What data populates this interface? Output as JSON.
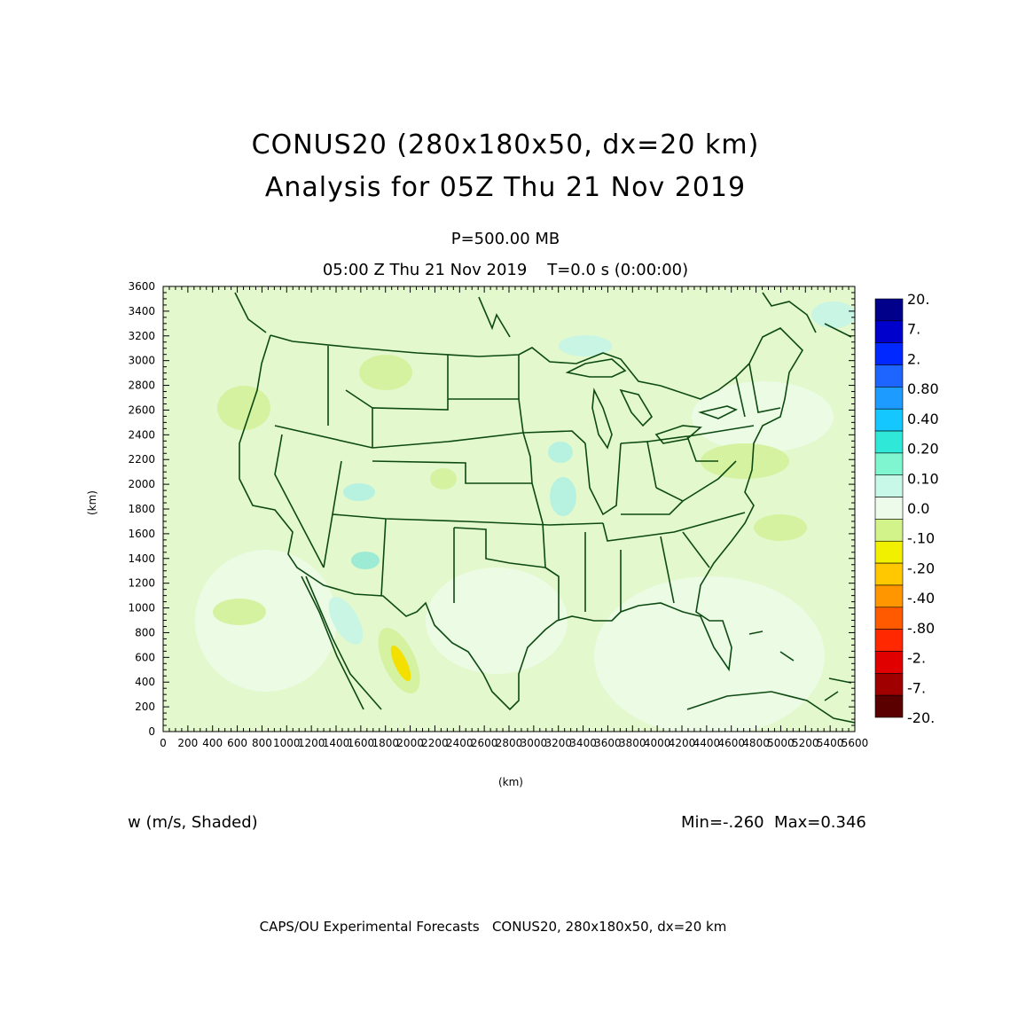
{
  "title_line1": "CONUS20 (280x180x50, dx=20 km)",
  "title_line2": "Analysis for 05Z Thu 21 Nov 2019",
  "level": "P=500.00 MB",
  "valid_time": "05:00 Z Thu 21 Nov 2019    T=0.0 s (0:00:00)",
  "axes": {
    "xlabel": "(km)",
    "ylabel": "(km)",
    "x_ticks": [
      "0",
      "200",
      "400",
      "600",
      "800",
      "1000",
      "1200",
      "1400",
      "1600",
      "1800",
      "2000",
      "2200",
      "2400",
      "2600",
      "2800",
      "3000",
      "3200",
      "3400",
      "3600",
      "3800",
      "4000",
      "4200",
      "4400",
      "4600",
      "4800",
      "5000",
      "5200",
      "5400",
      "5600"
    ],
    "y_ticks": [
      "0",
      "200",
      "400",
      "600",
      "800",
      "1000",
      "1200",
      "1400",
      "1600",
      "1800",
      "2000",
      "2200",
      "2400",
      "2600",
      "2800",
      "3000",
      "3200",
      "3400",
      "3600"
    ],
    "xlim": [
      0,
      5600
    ],
    "ylim": [
      0,
      3600
    ]
  },
  "colorbar": {
    "labels": [
      "20.",
      "7.",
      "2.",
      "0.80",
      "0.40",
      "0.20",
      "0.10",
      "0.0",
      "-.10",
      "-.20",
      "-.40",
      "-.80",
      "-2.",
      "-7.",
      "-20."
    ],
    "colors": [
      "#00008b",
      "#0000cd",
      "#0028ff",
      "#1e64ff",
      "#1e9bff",
      "#14c8ff",
      "#30e8d8",
      "#7ff5d0",
      "#c8f8e8",
      "#ecfbea",
      "#d2f28a",
      "#f0f000",
      "#ffc800",
      "#ff9600",
      "#ff5a00",
      "#ff2800",
      "#e00000",
      "#a00000",
      "#5a0000"
    ]
  },
  "field_label": "w (m/s, Shaded)",
  "min_max": "Min=-.260  Max=0.346",
  "footer": "CAPS/OU Experimental Forecasts   CONUS20, 280x180x50, dx=20 km",
  "colors": {
    "background_field": "#e3f8cd",
    "boundaries": "#0c4a12",
    "positive_light": "#b7f1e0",
    "negative_light": "#d1f19a",
    "max_negative": "#ffc800"
  }
}
